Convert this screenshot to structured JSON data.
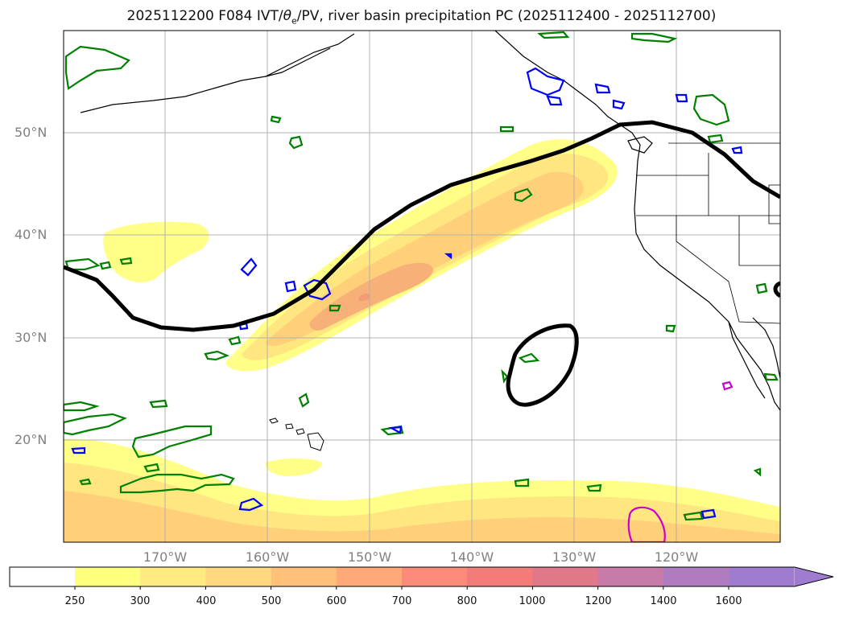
{
  "title": {
    "prefix": "2025112200 F084 IVT/",
    "theta": "θ",
    "theta_sub": "e",
    "suffix": "/PV, river basin precipitation PC (2025112400 - 2025112700)"
  },
  "axes": {
    "lat_labels": [
      "50°N",
      "40°N",
      "30°N",
      "20°N"
    ],
    "lon_labels": [
      "170°W",
      "160°W",
      "150°W",
      "140°W",
      "130°W",
      "120°W"
    ]
  },
  "legend": {
    "colorbar_labels": [
      "250",
      "300",
      "400",
      "500",
      "600",
      "700",
      "800",
      "1000",
      "1200",
      "1400",
      "1600"
    ],
    "colorbar_colors": [
      "#ffff80",
      "#ffeb80",
      "#ffd880",
      "#ffc07a",
      "#ffa878",
      "#fc8a78",
      "#f47c78",
      "#e0788a",
      "#c87aa8",
      "#b07cc0",
      "#a07cd0"
    ]
  },
  "colors": {
    "ivt_levels": [
      "#ffff88",
      "#ffe680",
      "#ffcf7a",
      "#f7b078"
    ],
    "pv_contour": "#000000",
    "green_contour": "#008000",
    "blue_contour": "#0000ff",
    "magenta_contour": "#cc00cc",
    "gridline": "#b0b0b0"
  }
}
